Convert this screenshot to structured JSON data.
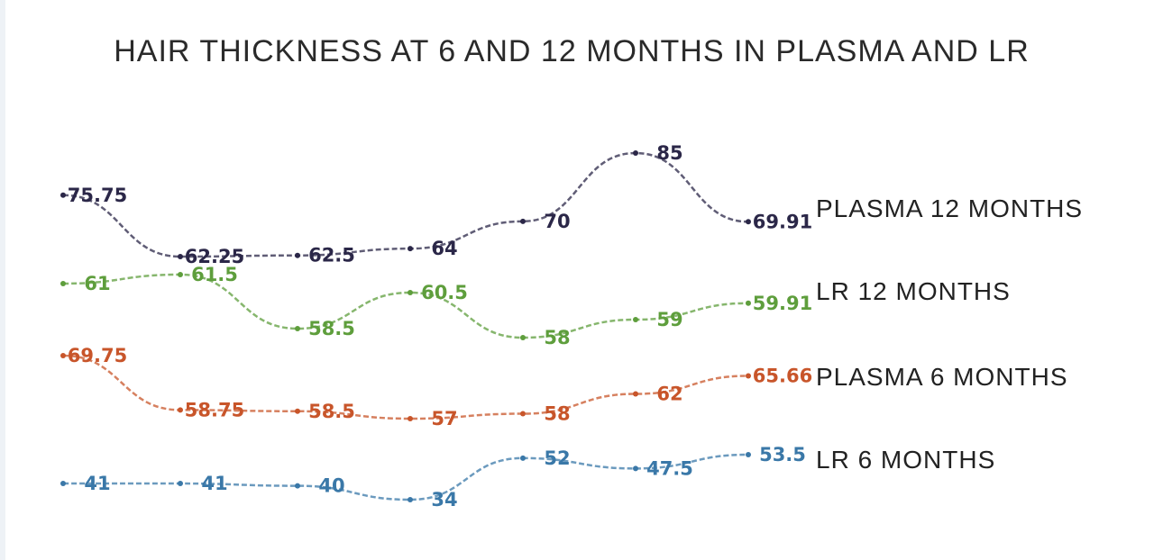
{
  "chart_data": {
    "type": "line",
    "title": "HAIR THICKNESS AT 6 AND 12 MONTHS IN PLASMA AND LR",
    "xlabel": "",
    "ylabel": "",
    "grid": false,
    "legend_position": "right",
    "series": [
      {
        "name": "PLASMA 12 MONTHS",
        "color": "#2b2748",
        "values": [
          75.75,
          62.25,
          62.5,
          64,
          70,
          85,
          69.91
        ],
        "labels": [
          "75.75",
          "62.25",
          "62.5",
          "64",
          "70",
          "85",
          "69.91"
        ]
      },
      {
        "name": "LR 12 MONTHS",
        "color": "#5e9e3c",
        "values": [
          61,
          61.5,
          58.5,
          60.5,
          58,
          59,
          59.91
        ],
        "labels": [
          "61",
          "61.5",
          "58.5",
          "60.5",
          "58",
          "59",
          "59.91"
        ]
      },
      {
        "name": "PLASMA 6 MONTHS",
        "color": "#c8552a",
        "values": [
          69.75,
          58.75,
          58.5,
          57,
          58,
          62,
          65.66
        ],
        "labels": [
          "69.75",
          "58.75",
          "58.5",
          "57",
          "58",
          "62",
          "65.66"
        ]
      },
      {
        "name": "LR 6 MONTHS",
        "color": "#3a78a8",
        "values": [
          41,
          41,
          40,
          34,
          52,
          47.5,
          53.5
        ],
        "labels": [
          "41",
          "41",
          "40",
          "34",
          "52",
          "47.5",
          "53.5"
        ]
      }
    ]
  }
}
